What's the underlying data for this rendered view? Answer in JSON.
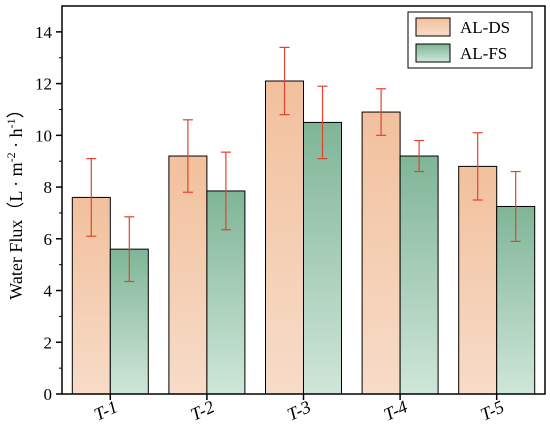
{
  "chart_data": {
    "type": "bar",
    "title": "",
    "xlabel": "",
    "ylabel": "Water Flux",
    "ylabel_unit": {
      "open": "（",
      "l": "L",
      "dot1": "·",
      "m": "m",
      "m_exp": "-2",
      "dot2": "·",
      "h": "h",
      "h_exp": "-1",
      "close": "）"
    },
    "categories": [
      "T-1",
      "T-2",
      "T-3",
      "T-4",
      "T-5"
    ],
    "ylim": [
      0,
      15
    ],
    "yticks": [
      0,
      2,
      4,
      6,
      8,
      10,
      12,
      14
    ],
    "grid": false,
    "legend_position": "top-right",
    "series": [
      {
        "name": "AL-DS",
        "color_top": "#f2c09d",
        "color_bottom": "#f7dcc8",
        "values": [
          7.6,
          9.2,
          12.1,
          10.9,
          8.8
        ],
        "error": [
          1.5,
          1.4,
          1.3,
          0.9,
          1.3
        ]
      },
      {
        "name": "AL-FS",
        "color_top": "#7fb597",
        "color_bottom": "#cfe6d9",
        "values": [
          5.6,
          7.85,
          10.5,
          9.2,
          7.25
        ],
        "error": [
          1.25,
          1.5,
          1.4,
          0.6,
          1.35
        ]
      }
    ],
    "error_bar_color": "#e0442e"
  }
}
